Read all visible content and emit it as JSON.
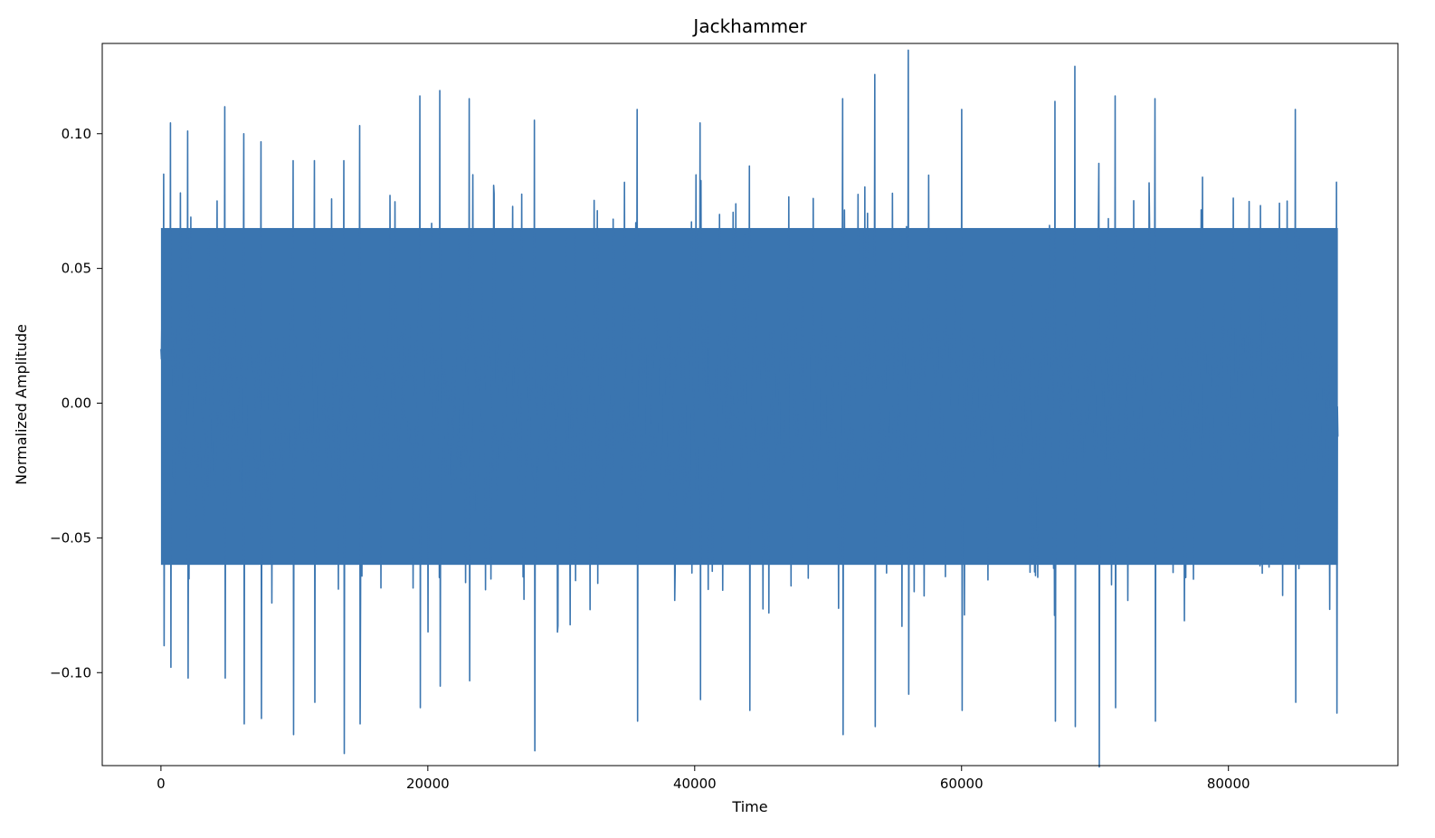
{
  "chart_data": {
    "type": "line",
    "title": "Jackhammer",
    "xlabel": "Time",
    "ylabel": "Normalized Amplitude",
    "xlim": [
      -4400,
      92700
    ],
    "ylim": [
      -0.1345,
      0.1335
    ],
    "x_ticks": [
      0,
      20000,
      40000,
      60000,
      80000
    ],
    "x_tick_labels": [
      "0",
      "20000",
      "40000",
      "60000",
      "80000"
    ],
    "y_ticks": [
      -0.1,
      -0.05,
      0.0,
      0.05,
      0.1
    ],
    "y_tick_labels": [
      "−0.10",
      "−0.05",
      "0.00",
      "0.05",
      "0.10"
    ],
    "grid": false,
    "legend": "none",
    "series": [
      {
        "color": "#3a75b0",
        "sample_count": 88200,
        "x_start": 0,
        "x_end": 88200,
        "typical_range": [
          -0.06,
          0.065
        ],
        "peak_max": 0.131,
        "peak_min": -0.135,
        "spikes": [
          [
            200,
            0.085,
            -0.09
          ],
          [
            700,
            0.104,
            -0.098
          ],
          [
            2000,
            0.101,
            -0.102
          ],
          [
            4800,
            0.11,
            -0.102
          ],
          [
            6200,
            0.1,
            -0.119
          ],
          [
            7500,
            0.097,
            -0.117
          ],
          [
            9900,
            0.09,
            -0.123
          ],
          [
            11500,
            0.09,
            -0.111
          ],
          [
            13700,
            0.09,
            -0.13
          ],
          [
            14900,
            0.103,
            -0.119
          ],
          [
            19400,
            0.114,
            -0.113
          ],
          [
            20900,
            0.116,
            -0.105
          ],
          [
            23100,
            0.113,
            -0.103
          ],
          [
            28000,
            0.105,
            -0.129
          ],
          [
            35700,
            0.109,
            -0.118
          ],
          [
            40400,
            0.104,
            -0.11
          ],
          [
            44100,
            0.088,
            -0.114
          ],
          [
            51100,
            0.113,
            -0.123
          ],
          [
            53500,
            0.122,
            -0.12
          ],
          [
            56000,
            0.131,
            -0.108
          ],
          [
            60000,
            0.109,
            -0.114
          ],
          [
            67000,
            0.112,
            -0.118
          ],
          [
            68500,
            0.125,
            -0.12
          ],
          [
            70300,
            0.089,
            -0.135
          ],
          [
            71500,
            0.114,
            -0.113
          ],
          [
            74500,
            0.113,
            -0.118
          ],
          [
            85000,
            0.109,
            -0.111
          ],
          [
            88100,
            0.082,
            -0.115
          ]
        ]
      }
    ]
  }
}
